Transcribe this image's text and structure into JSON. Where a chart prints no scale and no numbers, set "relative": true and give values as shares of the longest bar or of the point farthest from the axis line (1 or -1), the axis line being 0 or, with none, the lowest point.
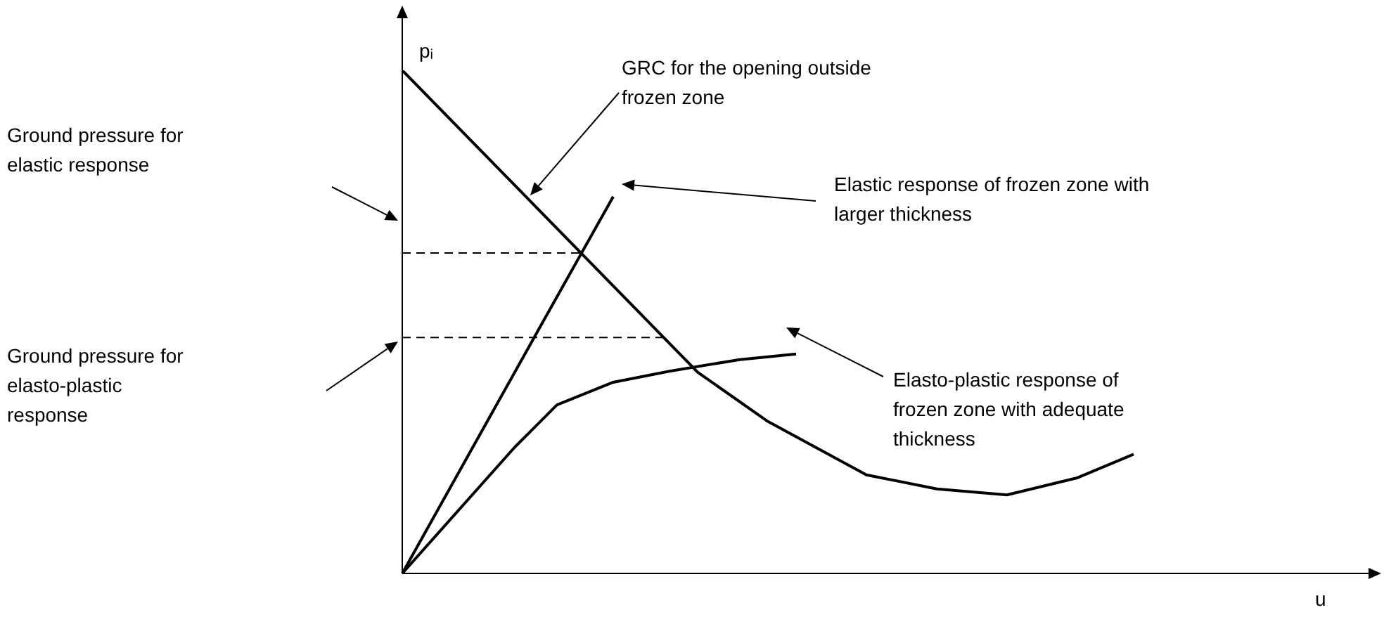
{
  "chart_data": {
    "type": "line",
    "relative": true,
    "xlabel": "u",
    "ylabel": "pᵢ",
    "legend": false,
    "marker": "none",
    "line_style": "solid",
    "categories": [
      null,
      null,
      null,
      null,
      null,
      null,
      null,
      null,
      null,
      null,
      null,
      null,
      null,
      null,
      null,
      null,
      null,
      null,
      null,
      null,
      null,
      null,
      null,
      null,
      null,
      null,
      null,
      null,
      null,
      null,
      null,
      null,
      null,
      null,
      null,
      null,
      null,
      null,
      null,
      null,
      null,
      null,
      null,
      null,
      null,
      null,
      null,
      null,
      null,
      null,
      null,
      null,
      null,
      null,
      null,
      null,
      null,
      null,
      null,
      null,
      null,
      null,
      null,
      null,
      null,
      null,
      null,
      null,
      null,
      null
    ],
    "series": [
      {
        "color": "#000000",
        "values": [
          1,
          null,
          null,
          null,
          null,
          null,
          null,
          null,
          null,
          null,
          null,
          null,
          null,
          null,
          null,
          null,
          null,
          null,
          null,
          null,
          null,
          0.4,
          null,
          null,
          null,
          null,
          0.302,
          null,
          null,
          null,
          null,
          null,
          null,
          0.196,
          null,
          null,
          null,
          null,
          0.168,
          null,
          null,
          null,
          null,
          0.156,
          null,
          null,
          null,
          null,
          0.19,
          null,
          null,
          null,
          0.237,
          null,
          null,
          null,
          null,
          null,
          null,
          null,
          null,
          null,
          null,
          null,
          null,
          null,
          null,
          null,
          null,
          null
        ]
      },
      {
        "color": "#000000",
        "values": [
          0,
          null,
          null,
          null,
          null,
          0.25,
          null,
          null,
          null,
          null,
          0.5,
          null,
          null,
          null,
          null,
          0.749,
          null,
          null,
          null,
          null,
          null,
          null,
          null,
          null,
          null,
          null,
          null,
          null,
          null,
          null,
          null,
          null,
          null,
          null,
          null,
          null,
          null,
          null,
          null,
          null,
          null,
          null,
          null,
          null,
          null,
          null,
          null,
          null,
          null,
          null,
          null,
          null,
          null,
          null,
          null,
          null,
          null,
          null,
          null,
          null,
          null,
          null,
          null,
          null,
          null,
          null,
          null,
          null,
          null,
          null
        ]
      },
      {
        "color": "#000000",
        "values": [
          0,
          null,
          null,
          null,
          null,
          null,
          null,
          null,
          0.251,
          null,
          null,
          0.335,
          null,
          null,
          null,
          0.38,
          null,
          null,
          null,
          0.402,
          null,
          null,
          null,
          null,
          0.425,
          null,
          null,
          null,
          0.436,
          null,
          null,
          null,
          null,
          null,
          null,
          null,
          null,
          null,
          null,
          null,
          null,
          null,
          null,
          null,
          null,
          null,
          null,
          null,
          null,
          null,
          null,
          null,
          null,
          null,
          null,
          null,
          null,
          null,
          null,
          null,
          null,
          null,
          null,
          null,
          null,
          null,
          null,
          null,
          null,
          null
        ]
      }
    ],
    "ref_lines": [
      {
        "axis": "y",
        "value": 0.637,
        "color": "#000000",
        "line_style": "dashed"
      },
      {
        "axis": "y",
        "value": 0.469,
        "color": "#000000",
        "line_style": "dashed"
      }
    ],
    "annotations": [
      "Ground pressure for elastic response",
      "Ground pressure for elasto-plastic response",
      "GRC for the opening outside frozen zone",
      "Elastic response of frozen zone with larger thickness",
      "Elasto-plastic response of frozen zone with adequate thickness"
    ]
  }
}
